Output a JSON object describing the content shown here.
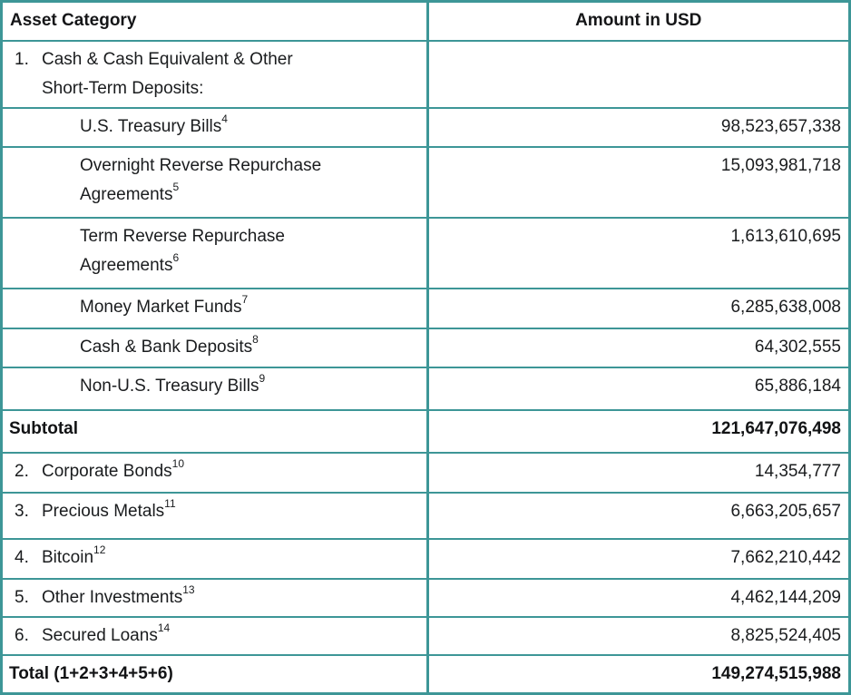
{
  "meta": {
    "accent_color": "#3d9697",
    "text_color": "#1a1c1e"
  },
  "table": {
    "columns": [
      {
        "label": "Asset Category"
      },
      {
        "label": "Amount in USD"
      }
    ],
    "rows": [
      {
        "name": "row-cash-equivalents-group",
        "style": "item",
        "number": "1.",
        "label": "Cash & Cash Equivalent & Other\nShort-Term Deposits:",
        "sup": "",
        "amount": ""
      },
      {
        "name": "row-us-treasury-bills",
        "style": "sub",
        "number": "",
        "label": "U.S. Treasury Bills",
        "sup": "4",
        "amount": "98,523,657,338"
      },
      {
        "name": "row-overnight-reverse-repo",
        "style": "sub",
        "number": "",
        "label": "Overnight Reverse Repurchase\nAgreements",
        "sup": "5",
        "amount": "15,093,981,718"
      },
      {
        "name": "row-term-reverse-repo",
        "style": "sub",
        "number": "",
        "label": "Term Reverse Repurchase\nAgreements",
        "sup": "6",
        "amount": "1,613,610,695"
      },
      {
        "name": "row-money-market-funds",
        "style": "sub",
        "number": "",
        "label": "Money Market Funds",
        "sup": "7",
        "amount": "6,285,638,008"
      },
      {
        "name": "row-cash-bank-deposits",
        "style": "sub",
        "number": "",
        "label": "Cash & Bank Deposits",
        "sup": "8",
        "amount": "64,302,555"
      },
      {
        "name": "row-non-us-treasury-bills",
        "style": "sub",
        "number": "",
        "label": "Non-U.S. Treasury Bills",
        "sup": "9",
        "amount": "65,886,184"
      },
      {
        "name": "row-subtotal",
        "style": "total",
        "number": "",
        "label": "Subtotal",
        "sup": "",
        "amount": "121,647,076,498"
      },
      {
        "name": "row-corporate-bonds",
        "style": "item",
        "number": "2.",
        "label": "Corporate Bonds",
        "sup": "10",
        "amount": "14,354,777"
      },
      {
        "name": "row-precious-metals",
        "style": "item",
        "number": "3.",
        "label": "Precious Metals",
        "sup": "11",
        "amount": "6,663,205,657"
      },
      {
        "name": "row-bitcoin",
        "style": "item",
        "number": "4.",
        "label": "Bitcoin",
        "sup": "12",
        "amount": "7,662,210,442"
      },
      {
        "name": "row-other-investments",
        "style": "item",
        "number": "5.",
        "label": "Other Investments",
        "sup": "13",
        "amount": "4,462,144,209"
      },
      {
        "name": "row-secured-loans",
        "style": "item",
        "number": "6.",
        "label": "Secured Loans",
        "sup": "14",
        "amount": "8,825,524,405"
      },
      {
        "name": "row-total",
        "style": "total",
        "number": "",
        "label": "Total (1+2+3+4+5+6)",
        "sup": "",
        "amount": "149,274,515,988"
      }
    ]
  }
}
